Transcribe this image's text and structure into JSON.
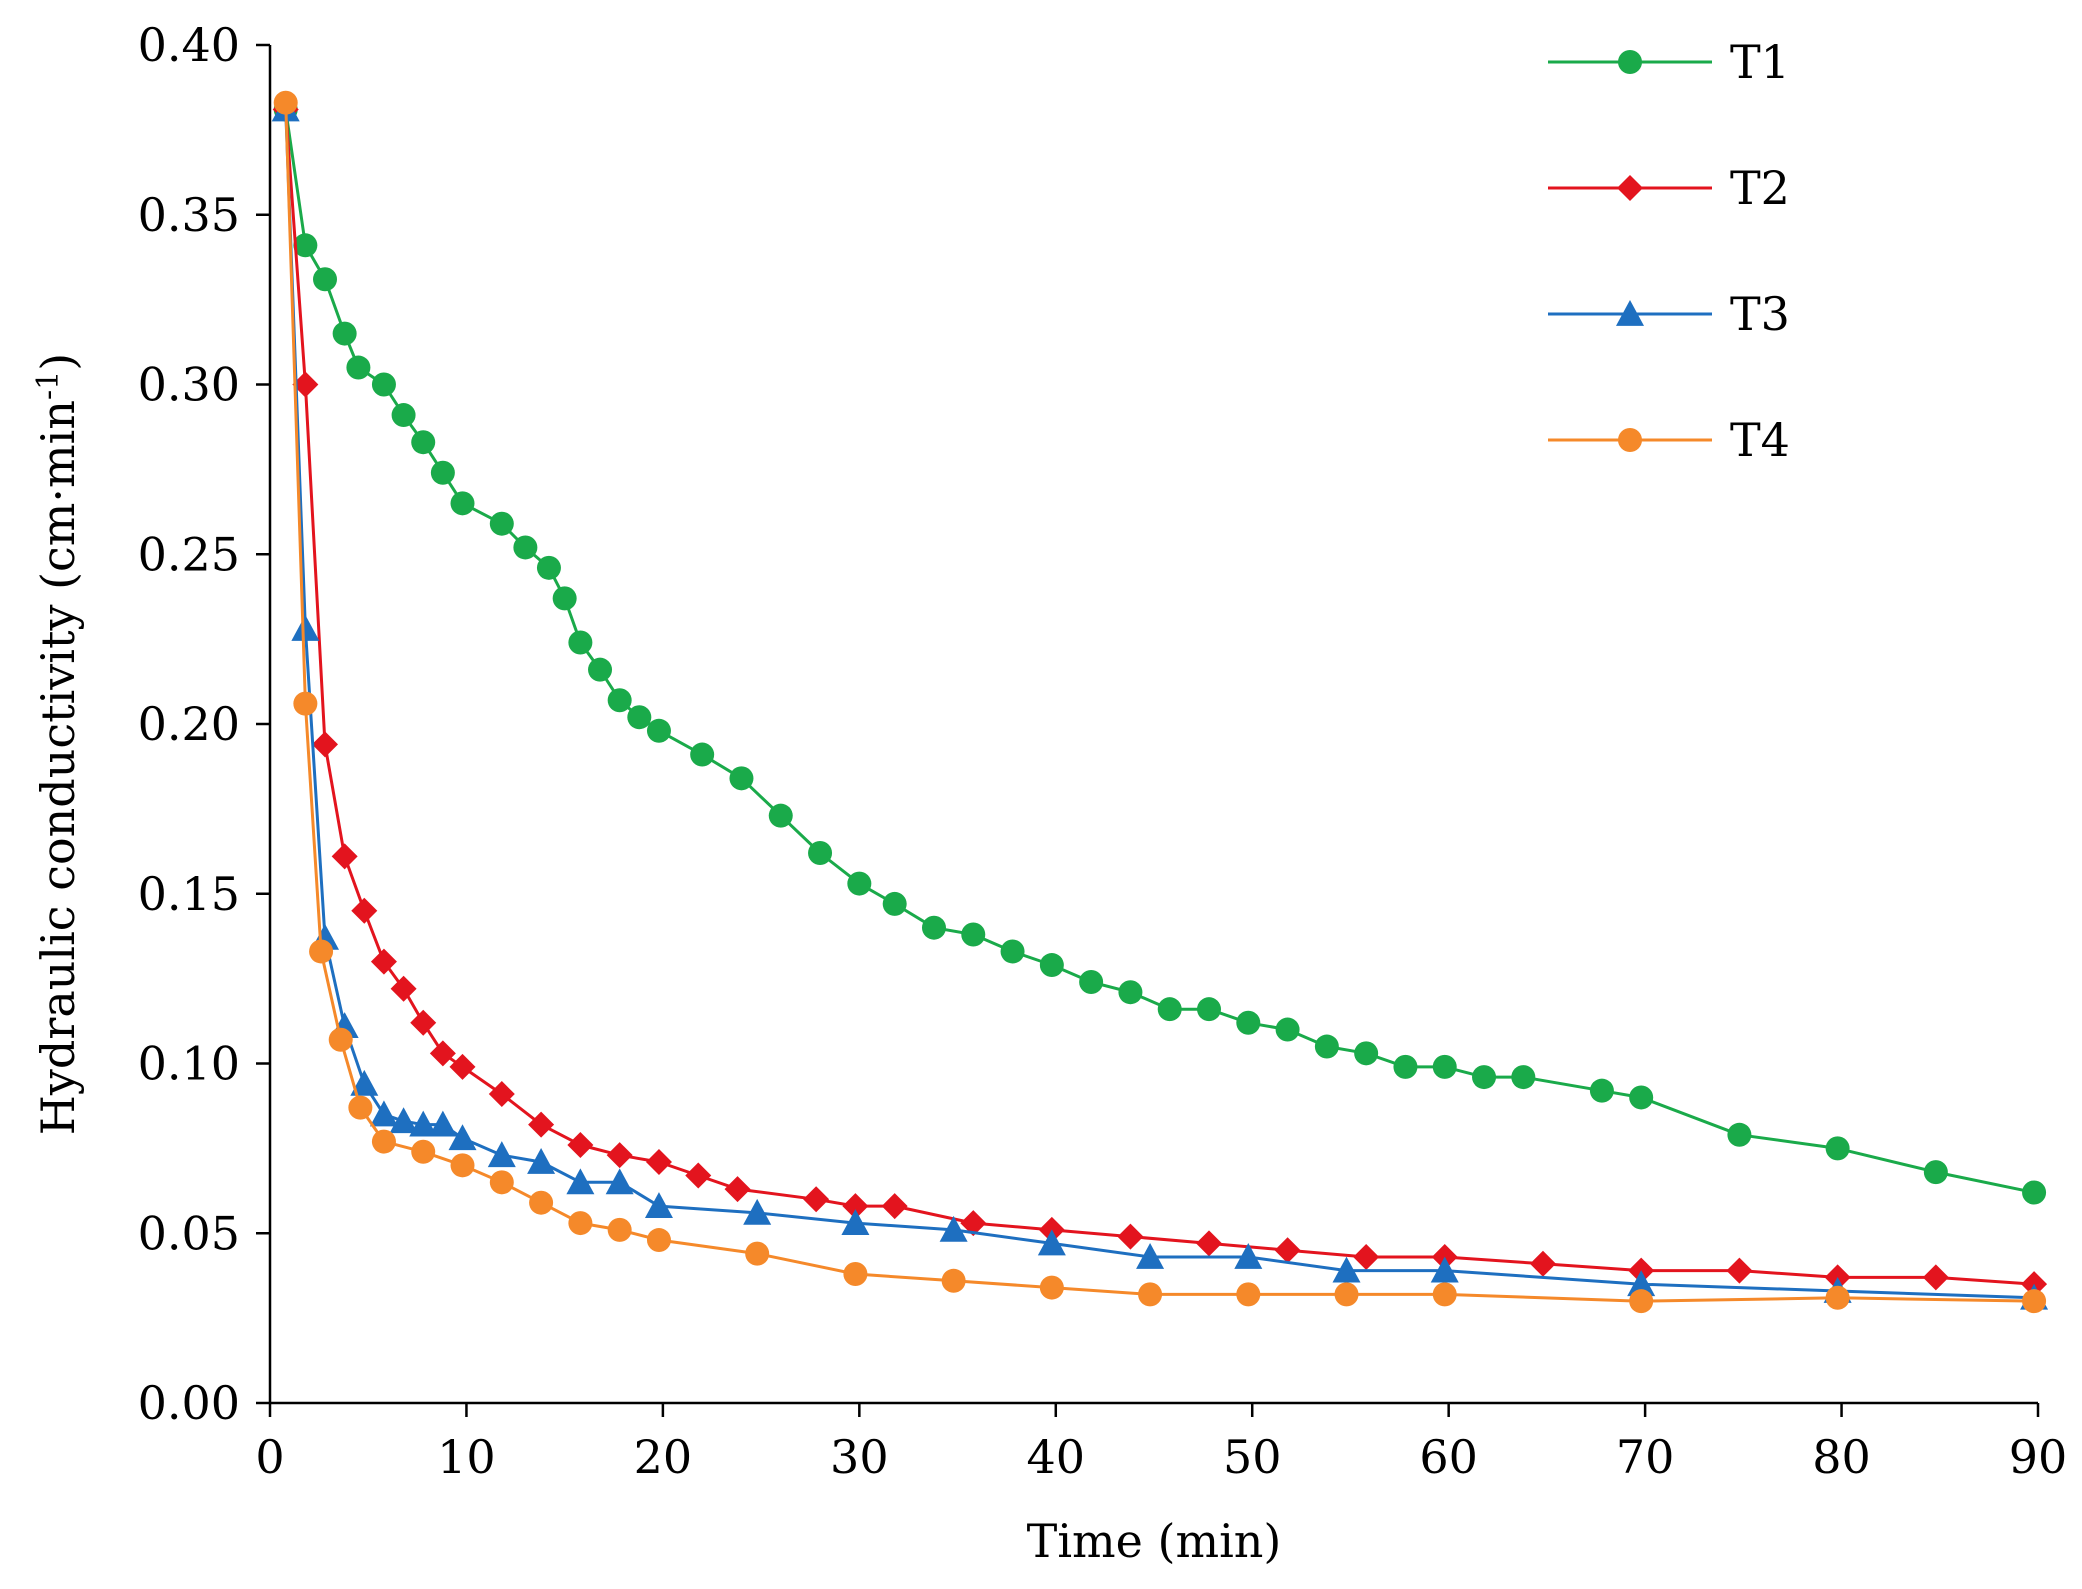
{
  "chart_data": {
    "type": "line",
    "title": "",
    "xlabel": "Time (min)",
    "ylabel": "Hydraulic conductivity (cm·min",
    "ylabel_superscript": "-1",
    "ylabel_close": ")",
    "xlim": [
      0,
      90
    ],
    "ylim": [
      0,
      0.4
    ],
    "xticks": [
      0,
      10,
      20,
      30,
      40,
      50,
      60,
      70,
      80,
      90
    ],
    "yticks": [
      0.0,
      0.05,
      0.1,
      0.15,
      0.2,
      0.25,
      0.3,
      0.35,
      0.4
    ],
    "xtick_labels": [
      "0",
      "10",
      "20",
      "30",
      "40",
      "50",
      "60",
      "70",
      "80",
      "90"
    ],
    "ytick_labels": [
      "0.00",
      "0.05",
      "0.10",
      "0.15",
      "0.20",
      "0.25",
      "0.30",
      "0.35",
      "0.40"
    ],
    "grid": false,
    "legend_position": "top-right",
    "series": [
      {
        "name": "T1",
        "color": "#1aaa4a",
        "marker": "circle",
        "x": [
          0.8,
          1.8,
          2.8,
          3.8,
          4.5,
          5.8,
          6.8,
          7.8,
          8.8,
          9.8,
          11.8,
          13.0,
          14.2,
          15.0,
          15.8,
          16.8,
          17.8,
          18.8,
          19.8,
          22.0,
          24.0,
          26.0,
          28.0,
          30.0,
          31.8,
          33.8,
          35.8,
          37.8,
          39.8,
          41.8,
          43.8,
          45.8,
          47.8,
          49.8,
          51.8,
          53.8,
          55.8,
          57.8,
          59.8,
          61.8,
          63.8,
          67.8,
          69.8,
          74.8,
          79.8,
          84.8,
          89.8
        ],
        "y": [
          0.381,
          0.341,
          0.331,
          0.315,
          0.305,
          0.3,
          0.291,
          0.283,
          0.274,
          0.265,
          0.259,
          0.252,
          0.246,
          0.237,
          0.224,
          0.216,
          0.207,
          0.202,
          0.198,
          0.191,
          0.184,
          0.173,
          0.162,
          0.153,
          0.147,
          0.14,
          0.138,
          0.133,
          0.129,
          0.124,
          0.121,
          0.116,
          0.116,
          0.112,
          0.11,
          0.105,
          0.103,
          0.099,
          0.099,
          0.096,
          0.096,
          0.092,
          0.09,
          0.079,
          0.075,
          0.068,
          0.062
        ]
      },
      {
        "name": "T2",
        "color": "#e3141e",
        "marker": "diamond",
        "x": [
          0.8,
          1.8,
          2.8,
          3.8,
          4.8,
          5.8,
          6.8,
          7.8,
          8.8,
          9.8,
          11.8,
          13.8,
          15.8,
          17.8,
          19.8,
          21.8,
          23.8,
          27.8,
          29.8,
          31.8,
          35.8,
          39.8,
          43.8,
          47.8,
          51.8,
          55.8,
          59.8,
          64.8,
          69.8,
          74.8,
          79.8,
          84.8,
          89.8
        ],
        "y": [
          0.381,
          0.3,
          0.194,
          0.161,
          0.145,
          0.13,
          0.122,
          0.112,
          0.103,
          0.099,
          0.091,
          0.082,
          0.076,
          0.073,
          0.071,
          0.067,
          0.063,
          0.06,
          0.058,
          0.058,
          0.053,
          0.051,
          0.049,
          0.047,
          0.045,
          0.043,
          0.043,
          0.041,
          0.039,
          0.039,
          0.037,
          0.037,
          0.035
        ]
      },
      {
        "name": "T3",
        "color": "#1e6fc0",
        "marker": "triangle",
        "x": [
          0.8,
          1.8,
          2.8,
          3.8,
          4.8,
          5.8,
          6.8,
          7.8,
          8.8,
          9.8,
          11.8,
          13.8,
          15.8,
          17.8,
          19.8,
          24.8,
          29.8,
          34.8,
          39.8,
          44.8,
          49.8,
          54.8,
          59.8,
          69.8,
          79.8,
          89.8
        ],
        "y": [
          0.381,
          0.228,
          0.137,
          0.111,
          0.094,
          0.085,
          0.083,
          0.082,
          0.082,
          0.078,
          0.073,
          0.071,
          0.065,
          0.065,
          0.058,
          0.056,
          0.053,
          0.051,
          0.047,
          0.043,
          0.043,
          0.039,
          0.039,
          0.035,
          0.033,
          0.031
        ]
      },
      {
        "name": "T4",
        "color": "#f5892a",
        "marker": "circle",
        "x": [
          0.8,
          1.8,
          2.6,
          3.6,
          4.6,
          5.8,
          7.8,
          9.8,
          11.8,
          13.8,
          15.8,
          17.8,
          19.8,
          24.8,
          29.8,
          34.8,
          39.8,
          44.8,
          49.8,
          54.8,
          59.8,
          69.8,
          79.8,
          89.8
        ],
        "y": [
          0.383,
          0.206,
          0.133,
          0.107,
          0.087,
          0.077,
          0.074,
          0.07,
          0.065,
          0.059,
          0.053,
          0.051,
          0.048,
          0.044,
          0.038,
          0.036,
          0.034,
          0.032,
          0.032,
          0.032,
          0.032,
          0.03,
          0.031,
          0.03
        ]
      }
    ]
  }
}
